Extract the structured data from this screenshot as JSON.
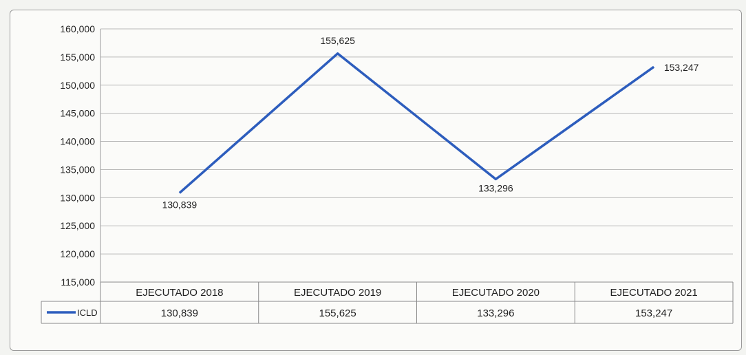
{
  "chart_data": {
    "type": "line",
    "categories": [
      "EJECUTADO 2018",
      "EJECUTADO 2019",
      "EJECUTADO 2020",
      "EJECUTADO 2021"
    ],
    "series": [
      {
        "name": "ICLD",
        "values": [
          130839,
          155625,
          133296,
          153247
        ],
        "labels": [
          "130,839",
          "155,625",
          "133,296",
          "153,247"
        ],
        "color": "#2d5dbd"
      }
    ],
    "ylim": [
      115000,
      160000
    ],
    "yticks": [
      "115,000",
      "120,000",
      "125,000",
      "130,000",
      "135,000",
      "140,000",
      "145,000",
      "150,000",
      "155,000",
      "160,000"
    ],
    "grid": true,
    "data_table": true
  }
}
